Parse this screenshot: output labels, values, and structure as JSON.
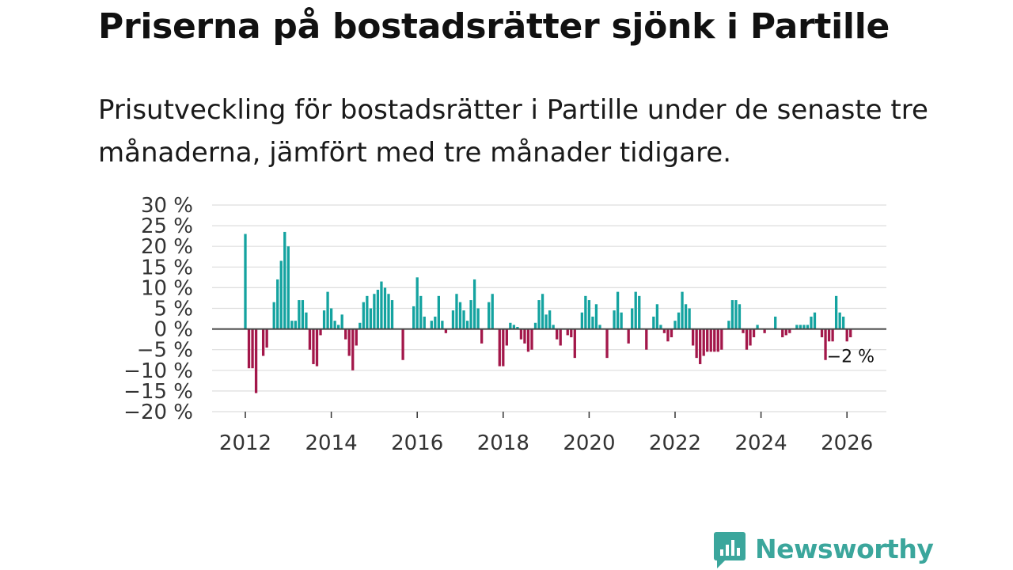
{
  "colors": {
    "positive": "#14a3a0",
    "negative": "#a3174a",
    "grid": "#dddddd",
    "zero": "#444444",
    "brand": "#3ba69c"
  },
  "brand": {
    "name": "Newsworthy",
    "icon": "newsworthy-logo-icon"
  },
  "chart_data": {
    "type": "bar",
    "title": "Priserna på bostadsrätter sjönk i Partille",
    "subtitle": "Prisutveckling för bostadsrätter i Partille under de senaste tre månaderna, jämfört med tre månader tidigare.",
    "xlabel": "",
    "ylabel": "",
    "ylim": [
      -20,
      30
    ],
    "y_ticks": [
      30,
      25,
      20,
      15,
      10,
      5,
      0,
      -5,
      -10,
      -15,
      -20
    ],
    "y_tick_labels": [
      "30 %",
      "25 %",
      "20 %",
      "15 %",
      "10 %",
      "5 %",
      "0 %",
      "−5 %",
      "−10 %",
      "−15 %",
      "−20 %"
    ],
    "x_ticks": [
      2012,
      2014,
      2016,
      2018,
      2020,
      2022,
      2024,
      2026
    ],
    "x_tick_labels": [
      "2012",
      "2014",
      "2016",
      "2018",
      "2020",
      "2022",
      "2024",
      "2026"
    ],
    "start": "2012-01",
    "frequency": "monthly",
    "values": [
      23,
      -9.5,
      -9.5,
      -15.5,
      0,
      -6.5,
      -4.5,
      0,
      6.5,
      12,
      16.5,
      23.5,
      20,
      2,
      2,
      7,
      7,
      4,
      -5,
      -8.5,
      -9,
      -1.5,
      4.5,
      9,
      5,
      2,
      1,
      3.5,
      -2.5,
      -6.5,
      -10,
      -4,
      1.5,
      6.5,
      8,
      5,
      8.5,
      9.5,
      11.5,
      10,
      8.5,
      7,
      0,
      0,
      -7.5,
      0,
      0,
      5.5,
      12.5,
      8,
      3,
      0,
      2,
      3,
      8,
      2,
      -1,
      0,
      4.5,
      8.5,
      6.5,
      4.5,
      2,
      7,
      12,
      5,
      -3.5,
      0,
      6.5,
      8.5,
      0,
      -9,
      -9,
      -4,
      1.5,
      1,
      0.5,
      -2.5,
      -3.5,
      -5.5,
      -5,
      1.5,
      7,
      8.5,
      3.5,
      4.5,
      1,
      -2.5,
      -4,
      0,
      -1.5,
      -2,
      -7,
      0,
      4,
      8,
      7,
      3,
      6,
      1,
      0,
      -7,
      0,
      4.5,
      9,
      4,
      0,
      -3.5,
      5,
      9,
      8,
      0,
      -5,
      0,
      3,
      6,
      1,
      -1,
      -3,
      -2,
      2,
      4,
      9,
      6,
      5,
      -4,
      -7,
      -8.5,
      -6.5,
      -5.5,
      -5.5,
      -5.5,
      -5.5,
      -5,
      0,
      2,
      7,
      7,
      6,
      -1,
      -5,
      -4,
      -2,
      1,
      0,
      -1,
      0,
      0,
      3,
      0,
      -2,
      -1.5,
      -1,
      0,
      1,
      1,
      1,
      1,
      3,
      4,
      0,
      -2,
      -7.5,
      -3,
      -3,
      8,
      4,
      3,
      -3,
      -2
    ],
    "annotations": [
      {
        "text": "−2 %",
        "at": "last"
      }
    ]
  }
}
